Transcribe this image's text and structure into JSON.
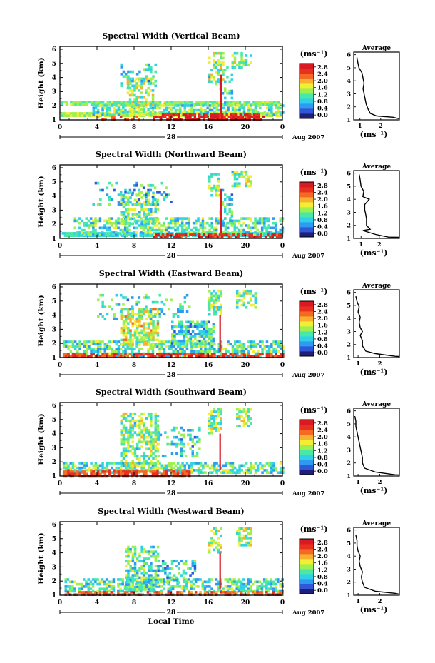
{
  "colorbar_levels": [
    "0.0",
    "0.4",
    "0.8",
    "1.2",
    "1.6",
    "2.0",
    "2.4",
    "2.8"
  ],
  "colors": [
    "#1f1f7a",
    "#2f57d8",
    "#2f9bf0",
    "#30d0e8",
    "#49e8a8",
    "#9ef050",
    "#f2ee35",
    "#f8b030",
    "#f46a25",
    "#e8301e",
    "#d81a22"
  ],
  "chart_data": [
    {
      "type": "heatmap",
      "title": "Spectral Width (Vertical Beam)",
      "xlabel": "",
      "ylabel": "Height (km)",
      "x_ticks": [
        "0",
        "4",
        "8",
        "12",
        "16",
        "20",
        "0"
      ],
      "xlim": [
        0,
        24
      ],
      "y_ticks": [
        "1",
        "2",
        "3",
        "4",
        "5",
        "6"
      ],
      "ylim": [
        1,
        6.2
      ],
      "date_label": "28",
      "date_suffix": "Aug 2007",
      "colorbar": {
        "unit": "(ms⁻¹)",
        "min": 0,
        "max": 2.8
      },
      "average": {
        "title": "Average",
        "xlabel": "(ms⁻¹)",
        "x_ticks": [
          "1",
          "2"
        ],
        "xlim": [
          0.7,
          2.9
        ],
        "ylim": [
          1,
          6.2
        ],
        "profile": [
          [
            1.2,
            2.6
          ],
          [
            1.3,
            1.8
          ],
          [
            1.5,
            1.5
          ],
          [
            1.8,
            1.4
          ],
          [
            2.2,
            1.3
          ],
          [
            2.6,
            1.25
          ],
          [
            3.0,
            1.2
          ],
          [
            3.4,
            1.15
          ],
          [
            3.8,
            1.2
          ],
          [
            4.2,
            1.15
          ],
          [
            4.6,
            1.1
          ],
          [
            5.0,
            0.95
          ],
          [
            5.4,
            0.9
          ],
          [
            5.8,
            0.85
          ]
        ]
      },
      "field": {
        "seed": 11,
        "dens": 0.55,
        "strips": [
          {
            "x0": 0.1,
            "x1": 23.9,
            "y0": 1.25,
            "y1": 1.55,
            "v": 1.5
          },
          {
            "x0": 0.1,
            "x1": 23.9,
            "y0": 2.05,
            "y1": 2.35,
            "v": 1.3
          }
        ],
        "regions": [
          {
            "x0": 3.5,
            "x1": 24,
            "y0": 1.35,
            "y1": 2.1,
            "v": 1.2
          },
          {
            "x0": 7.2,
            "x1": 10,
            "y0": 1.5,
            "y1": 4.0,
            "v": 1.4
          },
          {
            "x0": 6.5,
            "x1": 10.5,
            "y0": 3.5,
            "y1": 5.0,
            "v": 1.0,
            "d": 0.25
          },
          {
            "x0": 16.0,
            "x1": 17.5,
            "y0": 3.5,
            "y1": 5.8,
            "v": 1.3
          },
          {
            "x0": 18.5,
            "x1": 20.5,
            "y0": 4.8,
            "y1": 5.8,
            "v": 1.3
          },
          {
            "x0": 17.2,
            "x1": 18.5,
            "y0": 2.0,
            "y1": 4.8,
            "v": 1.0,
            "d": 0.3
          }
        ],
        "spikes": [
          {
            "x": 17.3,
            "y0": 1.4,
            "y1": 4.2,
            "v": 2.6
          }
        ],
        "hot": [
          {
            "x0": 10,
            "x1": 22,
            "y0": 1.05,
            "y1": 1.45,
            "v": 2.6
          },
          {
            "x0": 3.5,
            "x1": 9,
            "y0": 1.05,
            "y1": 1.3,
            "v": 2.2,
            "d": 0.3
          }
        ]
      }
    },
    {
      "type": "heatmap",
      "title": "Spectral Width (Northward Beam)",
      "xlabel": "",
      "ylabel": "Height (km)",
      "x_ticks": [
        "0",
        "4",
        "8",
        "12",
        "16",
        "20",
        "0"
      ],
      "xlim": [
        0,
        24
      ],
      "y_ticks": [
        "1",
        "2",
        "3",
        "4",
        "5",
        "6"
      ],
      "ylim": [
        1,
        6.2
      ],
      "date_label": "28",
      "date_suffix": "Aug 2007",
      "colorbar": {
        "unit": "(ms⁻¹)",
        "min": 0,
        "max": 2.8
      },
      "average": {
        "title": "Average",
        "xlabel": "(ms⁻¹)",
        "x_ticks": [
          "1",
          "2"
        ],
        "xlim": [
          0.6,
          3.1
        ],
        "ylim": [
          1,
          6.2
        ],
        "profile": [
          [
            1.1,
            2.5
          ],
          [
            1.3,
            1.8
          ],
          [
            1.6,
            1.1
          ],
          [
            1.7,
            1.5
          ],
          [
            2.0,
            1.3
          ],
          [
            2.5,
            1.3
          ],
          [
            2.9,
            1.25
          ],
          [
            3.2,
            1.2
          ],
          [
            3.6,
            1.2
          ],
          [
            4.0,
            1.45
          ],
          [
            4.2,
            1.1
          ],
          [
            4.6,
            1.15
          ],
          [
            5.0,
            1.0
          ],
          [
            5.5,
            0.95
          ],
          [
            5.9,
            0.9
          ]
        ]
      },
      "field": {
        "seed": 23,
        "dens": 0.55,
        "strips": [
          {
            "x0": 0.2,
            "x1": 23.9,
            "y0": 1.2,
            "y1": 1.45,
            "v": 1.0
          }
        ],
        "regions": [
          {
            "x0": 1.5,
            "x1": 24,
            "y0": 1.3,
            "y1": 2.5,
            "v": 1.1
          },
          {
            "x0": 6.5,
            "x1": 10.5,
            "y0": 2.0,
            "y1": 4.3,
            "v": 1.2
          },
          {
            "x0": 3.5,
            "x1": 12,
            "y0": 3.5,
            "y1": 5.0,
            "v": 0.9,
            "d": 0.2
          },
          {
            "x0": 16.0,
            "x1": 17.2,
            "y0": 4.0,
            "y1": 5.8,
            "v": 1.3
          },
          {
            "x0": 18.5,
            "x1": 20.5,
            "y0": 4.8,
            "y1": 5.8,
            "v": 1.3
          },
          {
            "x0": 17.2,
            "x1": 18.5,
            "y0": 2.0,
            "y1": 4.5,
            "v": 1.0,
            "d": 0.3
          }
        ],
        "spikes": [
          {
            "x": 17.3,
            "y0": 1.4,
            "y1": 4.5,
            "v": 2.6
          }
        ],
        "hot": [
          {
            "x0": 10,
            "x1": 24,
            "y0": 1.05,
            "y1": 1.35,
            "v": 2.5,
            "d": 0.6
          }
        ]
      }
    },
    {
      "type": "heatmap",
      "title": "Spectral Width (Eastward Beam)",
      "xlabel": "",
      "ylabel": "Height (km)",
      "x_ticks": [
        "0",
        "4",
        "8",
        "12",
        "16",
        "20",
        "0"
      ],
      "xlim": [
        0,
        24
      ],
      "y_ticks": [
        "1",
        "2",
        "3",
        "4",
        "5",
        "6"
      ],
      "ylim": [
        1,
        6.2
      ],
      "date_label": "28",
      "date_suffix": "Aug 2007",
      "colorbar": {
        "unit": "(ms⁻¹)",
        "min": 0,
        "max": 2.8
      },
      "average": {
        "title": "Average",
        "xlabel": "(ms⁻¹)",
        "x_ticks": [
          "1",
          "2"
        ],
        "xlim": [
          0.8,
          2.9
        ],
        "ylim": [
          1,
          6.2
        ],
        "profile": [
          [
            1.1,
            2.7
          ],
          [
            1.3,
            1.8
          ],
          [
            1.5,
            1.35
          ],
          [
            1.9,
            1.2
          ],
          [
            2.3,
            1.2
          ],
          [
            2.7,
            1.1
          ],
          [
            3.0,
            1.2
          ],
          [
            3.3,
            1.1
          ],
          [
            3.7,
            1.05
          ],
          [
            4.1,
            1.1
          ],
          [
            4.5,
            1.0
          ],
          [
            4.9,
            1.05
          ],
          [
            5.3,
            0.95
          ],
          [
            5.7,
            0.9
          ]
        ]
      },
      "field": {
        "seed": 37,
        "dens": 0.65,
        "strips": [],
        "regions": [
          {
            "x0": 0.3,
            "x1": 24,
            "y0": 1.2,
            "y1": 2.2,
            "v": 1.1
          },
          {
            "x0": 6.5,
            "x1": 10.5,
            "y0": 2.0,
            "y1": 4.5,
            "v": 1.6
          },
          {
            "x0": 4.0,
            "x1": 14.0,
            "y0": 3.8,
            "y1": 5.5,
            "v": 1.0,
            "d": 0.2
          },
          {
            "x0": 12.0,
            "x1": 16.5,
            "y0": 2.0,
            "y1": 3.6,
            "v": 1.0
          },
          {
            "x0": 16.0,
            "x1": 17.3,
            "y0": 4.0,
            "y1": 5.8,
            "v": 1.3
          },
          {
            "x0": 19.0,
            "x1": 21.0,
            "y0": 4.6,
            "y1": 5.8,
            "v": 1.3
          }
        ],
        "spikes": [
          {
            "x": 17.2,
            "y0": 1.4,
            "y1": 4.0,
            "v": 2.6
          }
        ],
        "hot": [
          {
            "x0": 0.3,
            "x1": 24,
            "y0": 1.05,
            "y1": 1.35,
            "v": 2.4,
            "d": 0.7
          }
        ]
      }
    },
    {
      "type": "heatmap",
      "title": "Spectral Width (Southward Beam)",
      "xlabel": "",
      "ylabel": "Height (km)",
      "x_ticks": [
        "0",
        "4",
        "8",
        "12",
        "16",
        "20",
        "0"
      ],
      "xlim": [
        0,
        24
      ],
      "y_ticks": [
        "1",
        "2",
        "3",
        "4",
        "5",
        "6"
      ],
      "ylim": [
        1,
        6.2
      ],
      "date_label": "28",
      "date_suffix": "Aug 2007",
      "colorbar": {
        "unit": "(ms⁻¹)",
        "min": 0,
        "max": 2.8
      },
      "average": {
        "title": "Average",
        "xlabel": "(ms⁻¹)",
        "x_ticks": [
          "1",
          "2"
        ],
        "xlim": [
          0.8,
          2.9
        ],
        "ylim": [
          1,
          6.2
        ],
        "profile": [
          [
            1.1,
            2.7
          ],
          [
            1.3,
            1.8
          ],
          [
            1.6,
            1.3
          ],
          [
            2.0,
            1.2
          ],
          [
            2.4,
            1.2
          ],
          [
            2.8,
            1.15
          ],
          [
            3.2,
            1.1
          ],
          [
            3.6,
            1.05
          ],
          [
            4.0,
            1.0
          ],
          [
            4.4,
            0.95
          ],
          [
            4.8,
            0.9
          ],
          [
            5.2,
            0.9
          ],
          [
            5.6,
            0.85
          ]
        ]
      },
      "field": {
        "seed": 53,
        "dens": 0.6,
        "strips": [],
        "regions": [
          {
            "x0": 0.3,
            "x1": 24,
            "y0": 1.2,
            "y1": 2.0,
            "v": 1.1
          },
          {
            "x0": 6.5,
            "x1": 10.5,
            "y0": 1.5,
            "y1": 5.5,
            "v": 1.3
          },
          {
            "x0": 10.5,
            "x1": 15.0,
            "y0": 2.5,
            "y1": 4.5,
            "v": 1.0,
            "d": 0.3
          },
          {
            "x0": 16.0,
            "x1": 17.3,
            "y0": 4.0,
            "y1": 5.8,
            "v": 1.3
          },
          {
            "x0": 19.0,
            "x1": 20.5,
            "y0": 4.6,
            "y1": 5.8,
            "v": 1.3
          }
        ],
        "spikes": [
          {
            "x": 17.2,
            "y0": 1.4,
            "y1": 4.0,
            "v": 2.6
          }
        ],
        "hot": [
          {
            "x0": 0.3,
            "x1": 14,
            "y0": 1.05,
            "y1": 1.4,
            "v": 2.3,
            "d": 0.7
          }
        ]
      }
    },
    {
      "type": "heatmap",
      "title": "Spectral Width (Westward Beam)",
      "xlabel": "Local Time",
      "ylabel": "Height (km)",
      "x_ticks": [
        "0",
        "4",
        "8",
        "12",
        "16",
        "20",
        "0"
      ],
      "xlim": [
        0,
        24
      ],
      "y_ticks": [
        "1",
        "2",
        "3",
        "4",
        "5",
        "6"
      ],
      "ylim": [
        1,
        6.2
      ],
      "date_label": "28",
      "date_suffix": "Aug 2007",
      "colorbar": {
        "unit": "(ms⁻¹)",
        "min": 0,
        "max": 2.8
      },
      "average": {
        "title": "Average",
        "xlabel": "(ms⁻¹)",
        "x_ticks": [
          "1",
          "2"
        ],
        "xlim": [
          0.8,
          2.9
        ],
        "ylim": [
          1,
          6.2
        ],
        "profile": [
          [
            1.15,
            2.7
          ],
          [
            1.3,
            1.8
          ],
          [
            1.6,
            1.3
          ],
          [
            2.0,
            1.2
          ],
          [
            2.4,
            1.15
          ],
          [
            2.8,
            1.2
          ],
          [
            3.2,
            1.1
          ],
          [
            3.6,
            1.05
          ],
          [
            4.0,
            1.1
          ],
          [
            4.4,
            1.0
          ],
          [
            4.8,
            0.95
          ],
          [
            5.2,
            0.95
          ],
          [
            5.6,
            0.9
          ]
        ]
      },
      "field": {
        "seed": 71,
        "dens": 0.6,
        "strips": [],
        "regions": [
          {
            "x0": 0.5,
            "x1": 24,
            "y0": 1.25,
            "y1": 2.2,
            "v": 1.1
          },
          {
            "x0": 7.0,
            "x1": 10.5,
            "y0": 1.5,
            "y1": 4.5,
            "v": 1.1
          },
          {
            "x0": 10.5,
            "x1": 14.5,
            "y0": 2.0,
            "y1": 3.5,
            "v": 0.9,
            "d": 0.3
          },
          {
            "x0": 16.0,
            "x1": 17.3,
            "y0": 4.0,
            "y1": 5.8,
            "v": 1.3
          },
          {
            "x0": 19.0,
            "x1": 20.5,
            "y0": 4.6,
            "y1": 5.8,
            "v": 1.3
          }
        ],
        "spikes": [
          {
            "x": 17.2,
            "y0": 1.4,
            "y1": 4.0,
            "v": 2.6
          }
        ],
        "hot": [
          {
            "x0": 0.5,
            "x1": 24,
            "y0": 1.05,
            "y1": 1.3,
            "v": 2.2,
            "d": 0.6
          }
        ]
      }
    }
  ]
}
